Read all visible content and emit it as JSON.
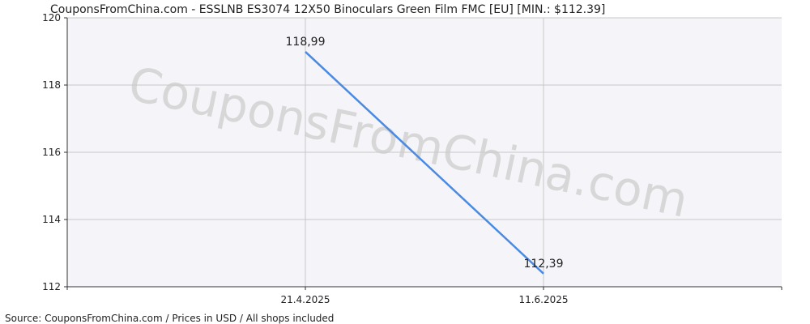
{
  "chart_data": {
    "type": "line",
    "title": "CouponsFromChina.com - ESSLNB ES3074 12X50 Binoculars Green Film FMC [EU] [MIN.: $112.39]",
    "source": "Source: CouponsFromChina.com / Prices in USD / All shops included",
    "watermark": "CouponsFromChina.com",
    "categories": [
      "21.4.2025",
      "11.6.2025"
    ],
    "series": [
      {
        "name": "Price",
        "color": "#4a8ae2",
        "values": [
          118.99,
          112.39
        ],
        "value_labels": [
          "118,99",
          "112,39"
        ]
      }
    ],
    "ylim": [
      112,
      120
    ],
    "yticks": [
      112,
      114,
      116,
      118,
      120
    ],
    "grid": true
  }
}
